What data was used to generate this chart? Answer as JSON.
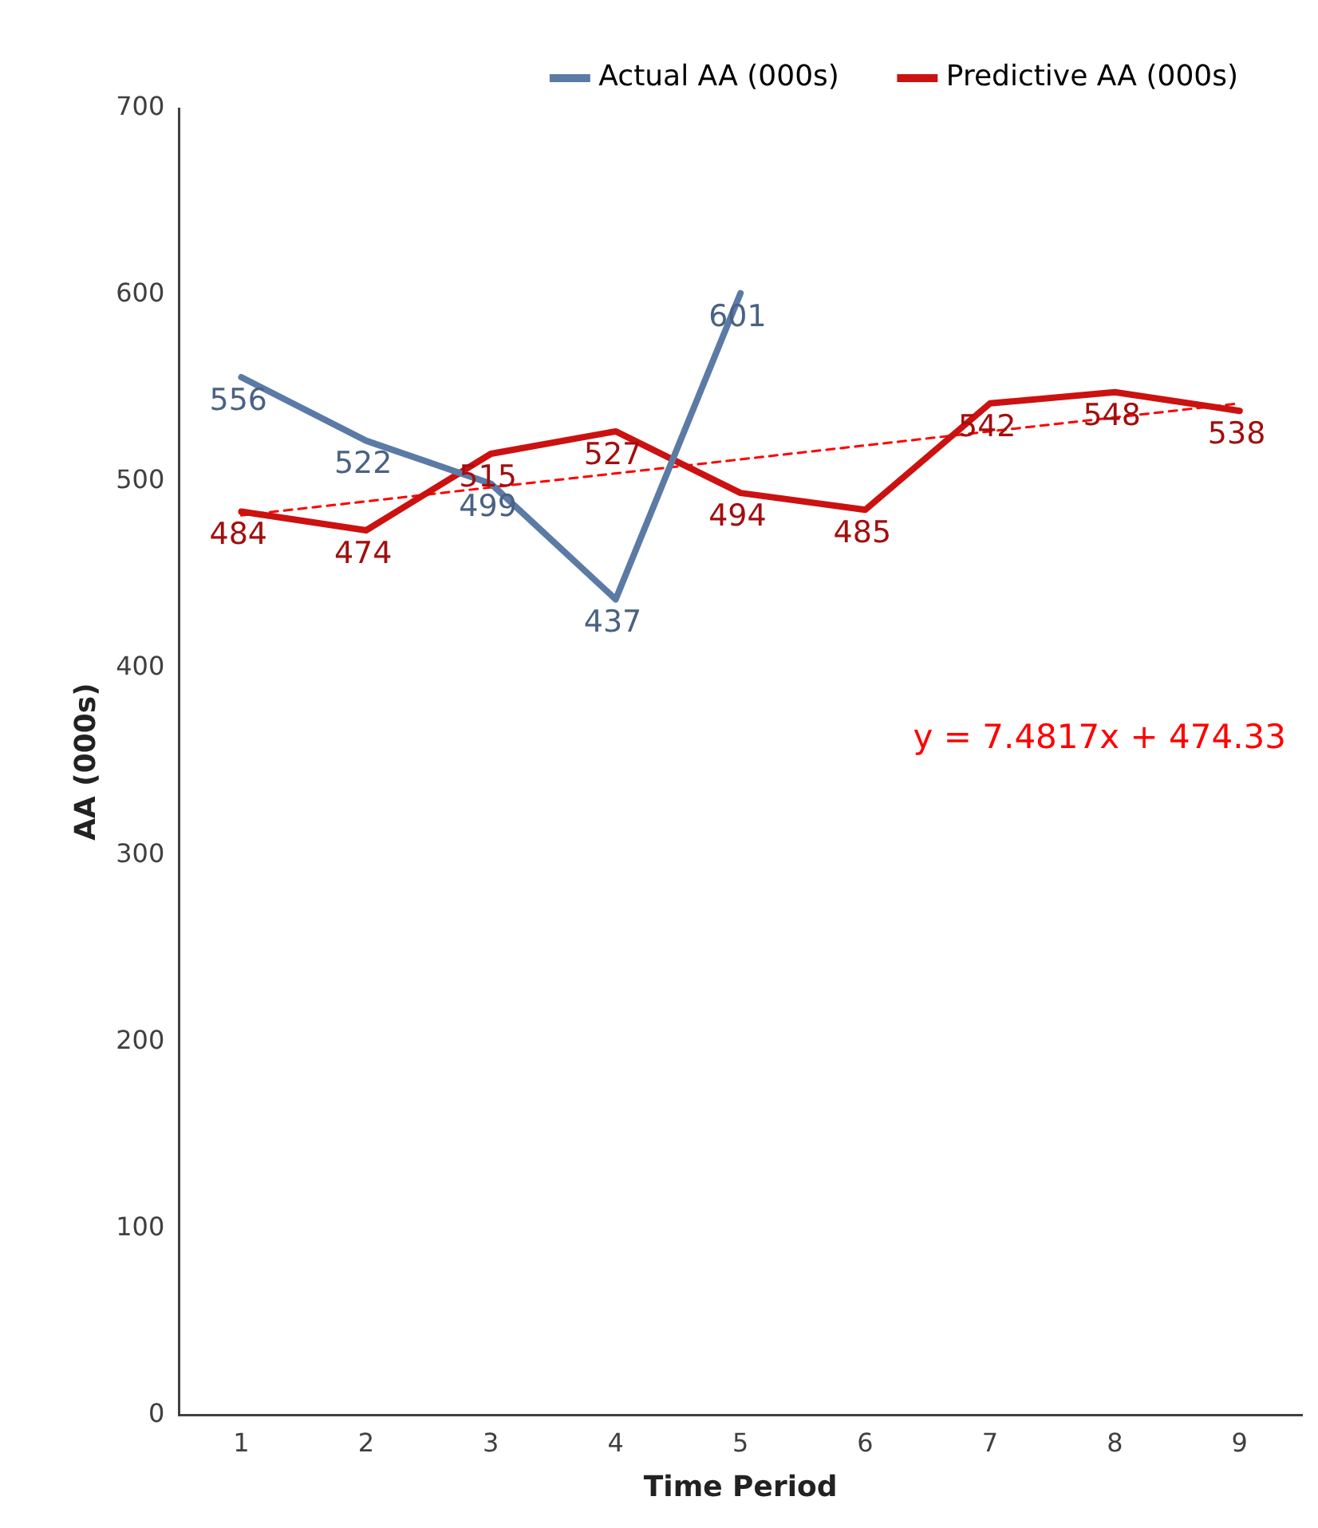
{
  "chart_data": {
    "type": "line",
    "xlabel": "Time Period",
    "ylabel": "AA (000s)",
    "x": [
      1,
      2,
      3,
      4,
      5,
      6,
      7,
      8,
      9
    ],
    "xlim": [
      0.5,
      9.5
    ],
    "xticks": [
      1,
      2,
      3,
      4,
      5,
      6,
      7,
      8,
      9
    ],
    "ylim": [
      0,
      700
    ],
    "yticks": [
      0,
      100,
      200,
      300,
      400,
      500,
      600,
      700
    ],
    "series": [
      {
        "name": "Actual AA (000s)",
        "color": "#5b7ba6",
        "values": [
          556,
          522,
          499,
          437,
          601,
          null,
          null,
          null,
          null
        ]
      },
      {
        "name": "Predictive AA (000s)",
        "color": "#cc1111",
        "values": [
          484,
          474,
          515,
          527,
          494,
          485,
          542,
          548,
          538
        ]
      },
      {
        "type": "line",
        "x": [
          1,
          9
        ],
        "values": [
          482,
          542
        ],
        "color": "#ff0000",
        "line_style": "dashed",
        "data_labels": false
      }
    ],
    "data_labels": true,
    "marker": "none",
    "line_style": "solid",
    "grid": false,
    "legend": "top right",
    "annotations": [
      "y = 7.4817x + 474.33"
    ]
  }
}
